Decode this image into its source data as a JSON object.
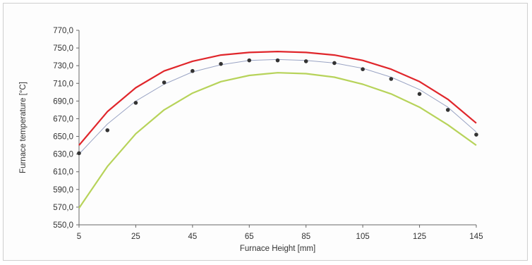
{
  "chart_data": {
    "type": "line",
    "title": "",
    "xlabel": "Furnace Height [mm]",
    "ylabel": "Furnace temperature [°C]",
    "xlim": [
      5,
      145
    ],
    "ylim": [
      550,
      770
    ],
    "xticks": [
      5,
      25,
      45,
      65,
      85,
      105,
      125,
      145
    ],
    "xtick_labels": [
      "5",
      "25",
      "45",
      "65",
      "85",
      "105",
      "125",
      "145"
    ],
    "yticks": [
      550,
      570,
      590,
      610,
      630,
      650,
      670,
      690,
      710,
      730,
      750,
      770
    ],
    "ytick_labels": [
      "550,0",
      "570,0",
      "590,0",
      "610,0",
      "630,0",
      "650,0",
      "670,0",
      "690,0",
      "710,0",
      "730,0",
      "750,0",
      "770,0"
    ],
    "grid": false,
    "legend": "none",
    "x": [
      5,
      15,
      25,
      35,
      45,
      55,
      65,
      75,
      85,
      95,
      105,
      115,
      125,
      135,
      145
    ],
    "series": [
      {
        "kind": "line",
        "color": "#e0262b",
        "values": [
          640,
          678,
          705,
          724,
          735,
          742,
          745,
          746,
          745,
          742,
          736,
          726,
          712,
          692,
          665
        ]
      },
      {
        "kind": "line",
        "color": "#b7d35a",
        "values": [
          569,
          616,
          653,
          680,
          699,
          712,
          719,
          722,
          721,
          717,
          709,
          698,
          683,
          663,
          640
        ]
      },
      {
        "kind": "line",
        "color": "#9aa4c4",
        "values": [
          630,
          664,
          690,
          709,
          723,
          731,
          736,
          737,
          736,
          733,
          727,
          717,
          703,
          683,
          655
        ]
      },
      {
        "kind": "scatter",
        "color": "#333333",
        "values": [
          631,
          657,
          688,
          711,
          724,
          732,
          736,
          736,
          735,
          733,
          726,
          715,
          698,
          680,
          652
        ]
      }
    ]
  }
}
